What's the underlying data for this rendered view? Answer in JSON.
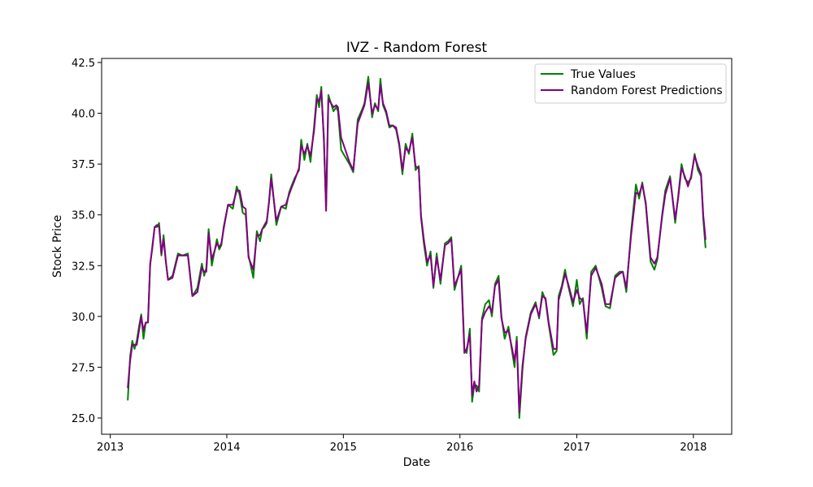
{
  "chart_data": {
    "type": "line",
    "title": "IVZ - Random Forest",
    "xlabel": "Date",
    "ylabel": "Stock Price",
    "xlim": [
      "2012-12-05",
      "2018-05-01"
    ],
    "ylim": [
      24.2,
      42.7
    ],
    "x_ticks": [
      "2013",
      "2014",
      "2015",
      "2016",
      "2017",
      "2018"
    ],
    "x_tick_dates": [
      "2013-01-01",
      "2014-01-01",
      "2015-01-01",
      "2016-01-01",
      "2017-01-01",
      "2018-01-01"
    ],
    "y_ticks": [
      "25.0",
      "27.5",
      "30.0",
      "32.5",
      "35.0",
      "37.5",
      "40.0",
      "42.5"
    ],
    "y_tick_values": [
      25.0,
      27.5,
      30.0,
      32.5,
      35.0,
      37.5,
      40.0,
      42.5
    ],
    "grid": false,
    "legend_position": "top-right",
    "x": [
      "2013-02-25",
      "2013-03-04",
      "2013-03-11",
      "2013-03-18",
      "2013-03-25",
      "2013-04-01",
      "2013-04-08",
      "2013-04-15",
      "2013-04-22",
      "2013-04-29",
      "2013-05-06",
      "2013-05-13",
      "2013-05-20",
      "2013-05-27",
      "2013-06-03",
      "2013-06-10",
      "2013-06-17",
      "2013-06-24",
      "2013-07-01",
      "2013-07-15",
      "2013-08-01",
      "2013-08-15",
      "2013-09-01",
      "2013-09-15",
      "2013-10-01",
      "2013-10-15",
      "2013-10-22",
      "2013-10-29",
      "2013-11-05",
      "2013-11-15",
      "2013-12-01",
      "2013-12-08",
      "2013-12-15",
      "2013-12-22",
      "2014-01-05",
      "2014-01-20",
      "2014-02-01",
      "2014-02-10",
      "2014-02-20",
      "2014-03-01",
      "2014-03-10",
      "2014-03-25",
      "2014-04-05",
      "2014-04-15",
      "2014-04-22",
      "2014-04-29",
      "2014-05-06",
      "2014-05-13",
      "2014-05-20",
      "2014-06-05",
      "2014-06-20",
      "2014-07-05",
      "2014-07-15",
      "2014-07-22",
      "2014-08-01",
      "2014-08-15",
      "2014-08-22",
      "2014-09-01",
      "2014-09-10",
      "2014-09-20",
      "2014-10-01",
      "2014-10-10",
      "2014-10-17",
      "2014-10-24",
      "2014-11-01",
      "2014-11-08",
      "2014-11-15",
      "2014-12-01",
      "2014-12-10",
      "2014-12-15",
      "2014-12-25",
      "2015-01-05",
      "2015-01-20",
      "2015-02-01",
      "2015-02-15",
      "2015-03-01",
      "2015-03-08",
      "2015-03-20",
      "2015-04-01",
      "2015-04-10",
      "2015-04-20",
      "2015-04-27",
      "2015-05-05",
      "2015-05-15",
      "2015-05-25",
      "2015-06-05",
      "2015-06-15",
      "2015-06-25",
      "2015-07-05",
      "2015-07-15",
      "2015-07-25",
      "2015-08-05",
      "2015-08-15",
      "2015-08-25",
      "2015-09-01",
      "2015-09-10",
      "2015-09-20",
      "2015-10-01",
      "2015-10-10",
      "2015-10-20",
      "2015-11-01",
      "2015-11-15",
      "2015-11-25",
      "2015-12-05",
      "2015-12-15",
      "2016-01-05",
      "2016-01-15",
      "2016-01-22",
      "2016-02-01",
      "2016-02-08",
      "2016-02-15",
      "2016-02-22",
      "2016-03-01",
      "2016-03-10",
      "2016-03-20",
      "2016-04-01",
      "2016-04-10",
      "2016-04-20",
      "2016-05-01",
      "2016-05-10",
      "2016-05-20",
      "2016-06-01",
      "2016-06-10",
      "2016-06-20",
      "2016-06-27",
      "2016-07-05",
      "2016-07-15",
      "2016-07-25",
      "2016-08-10",
      "2016-08-25",
      "2016-09-05",
      "2016-09-15",
      "2016-09-25",
      "2016-10-05",
      "2016-10-20",
      "2016-10-30",
      "2016-11-05",
      "2016-11-15",
      "2016-11-25",
      "2016-12-05",
      "2016-12-20",
      "2017-01-01",
      "2017-01-10",
      "2017-01-20",
      "2017-02-01",
      "2017-02-15",
      "2017-03-01",
      "2017-03-20",
      "2017-04-01",
      "2017-04-15",
      "2017-05-01",
      "2017-05-15",
      "2017-05-25",
      "2017-06-05",
      "2017-06-20",
      "2017-07-05",
      "2017-07-15",
      "2017-07-25",
      "2017-08-05",
      "2017-08-20",
      "2017-09-01",
      "2017-09-10",
      "2017-09-25",
      "2017-10-05",
      "2017-10-20",
      "2017-11-05",
      "2017-11-15",
      "2017-11-25",
      "2017-12-05",
      "2017-12-15",
      "2017-12-25",
      "2018-01-05",
      "2018-01-15",
      "2018-01-25",
      "2018-02-01",
      "2018-02-08"
    ],
    "series": [
      {
        "name": "True Values",
        "color": "#008000",
        "values": [
          25.9,
          28.0,
          28.8,
          28.4,
          28.8,
          29.5,
          30.1,
          28.9,
          29.7,
          29.7,
          32.5,
          33.5,
          34.4,
          34.4,
          34.6,
          33.0,
          34.0,
          32.7,
          31.8,
          32.0,
          33.1,
          33.0,
          33.1,
          31.0,
          31.4,
          32.6,
          32.0,
          32.4,
          34.3,
          32.5,
          33.8,
          33.3,
          33.5,
          34.4,
          35.5,
          35.3,
          36.4,
          36.0,
          35.1,
          35.0,
          33.0,
          31.9,
          34.2,
          33.7,
          34.3,
          34.4,
          34.6,
          35.6,
          37.0,
          34.5,
          35.4,
          35.3,
          36.1,
          36.4,
          36.8,
          37.2,
          38.7,
          37.7,
          38.5,
          37.6,
          39.3,
          40.9,
          40.3,
          41.3,
          38.6,
          35.4,
          40.9,
          40.1,
          40.3,
          40.1,
          38.2,
          37.9,
          37.5,
          37.1,
          39.7,
          40.2,
          40.5,
          41.8,
          39.8,
          40.5,
          40.1,
          41.7,
          40.4,
          40.0,
          39.3,
          39.4,
          39.2,
          38.4,
          37.0,
          38.5,
          38.0,
          39.0,
          37.2,
          37.4,
          34.9,
          33.6,
          32.5,
          33.2,
          31.4,
          33.1,
          31.6,
          33.6,
          33.7,
          33.9,
          31.3,
          32.5,
          28.4,
          28.2,
          29.4,
          25.8,
          26.6,
          26.6,
          26.3,
          29.9,
          30.6,
          30.8,
          30.0,
          31.6,
          32.0,
          30.0,
          28.9,
          29.5,
          28.5,
          27.5,
          29.0,
          25.0,
          27.4,
          29.0,
          30.2,
          30.7,
          29.9,
          31.2,
          30.8,
          29.6,
          28.1,
          28.3,
          31.0,
          31.5,
          32.3,
          31.5,
          30.5,
          31.8,
          30.6,
          30.9,
          28.9,
          32.2,
          32.5,
          31.4,
          30.5,
          30.4,
          32.0,
          32.2,
          32.2,
          31.2,
          34.2,
          36.5,
          35.8,
          36.6,
          35.5,
          32.7,
          32.3,
          32.8,
          35.0,
          36.2,
          36.9,
          34.6,
          36.0,
          37.5,
          36.8,
          36.6,
          36.8,
          38.0,
          37.2,
          36.9,
          34.8,
          33.4
        ]
      },
      {
        "name": "Random Forest Predictions",
        "color": "#800080",
        "values": [
          26.5,
          27.8,
          28.6,
          28.6,
          28.6,
          29.3,
          30.0,
          29.3,
          29.7,
          29.7,
          32.6,
          33.4,
          34.4,
          34.5,
          34.4,
          33.1,
          33.8,
          32.7,
          31.8,
          31.9,
          33.0,
          33.0,
          33.0,
          31.0,
          31.2,
          32.4,
          32.2,
          32.2,
          34.1,
          32.8,
          33.6,
          33.4,
          33.6,
          34.3,
          35.5,
          35.5,
          36.2,
          36.2,
          35.4,
          35.3,
          32.9,
          32.3,
          34.0,
          34.0,
          34.3,
          34.5,
          34.7,
          35.6,
          36.8,
          34.7,
          35.4,
          35.5,
          36.0,
          36.3,
          36.7,
          37.3,
          38.4,
          38.0,
          38.4,
          37.9,
          39.1,
          40.7,
          40.6,
          41.1,
          38.8,
          35.2,
          40.7,
          40.3,
          40.4,
          40.3,
          38.8,
          38.3,
          37.6,
          37.2,
          39.5,
          40.1,
          40.4,
          41.5,
          40.0,
          40.4,
          40.2,
          41.4,
          40.5,
          40.1,
          39.4,
          39.4,
          39.3,
          38.5,
          37.2,
          38.3,
          38.1,
          38.8,
          37.4,
          37.3,
          35.0,
          33.8,
          32.7,
          33.0,
          31.5,
          32.9,
          31.8,
          33.5,
          33.6,
          33.8,
          31.5,
          32.3,
          28.2,
          28.4,
          29.1,
          26.1,
          26.8,
          26.3,
          26.6,
          29.8,
          30.2,
          30.5,
          30.2,
          31.5,
          31.8,
          29.9,
          29.2,
          29.3,
          28.6,
          27.8,
          28.8,
          25.3,
          27.6,
          28.9,
          30.1,
          30.6,
          30.0,
          31.0,
          30.9,
          29.7,
          28.4,
          28.4,
          30.8,
          31.4,
          32.1,
          31.6,
          30.7,
          31.3,
          30.9,
          30.8,
          29.2,
          32.0,
          32.4,
          31.6,
          30.6,
          30.6,
          31.9,
          32.1,
          32.2,
          31.4,
          34.0,
          36.1,
          36.0,
          36.5,
          35.6,
          32.9,
          32.6,
          32.9,
          34.9,
          36.0,
          36.8,
          34.8,
          35.9,
          37.3,
          36.9,
          36.4,
          36.9,
          37.9,
          37.4,
          37.0,
          35.0,
          33.8
        ]
      }
    ]
  }
}
